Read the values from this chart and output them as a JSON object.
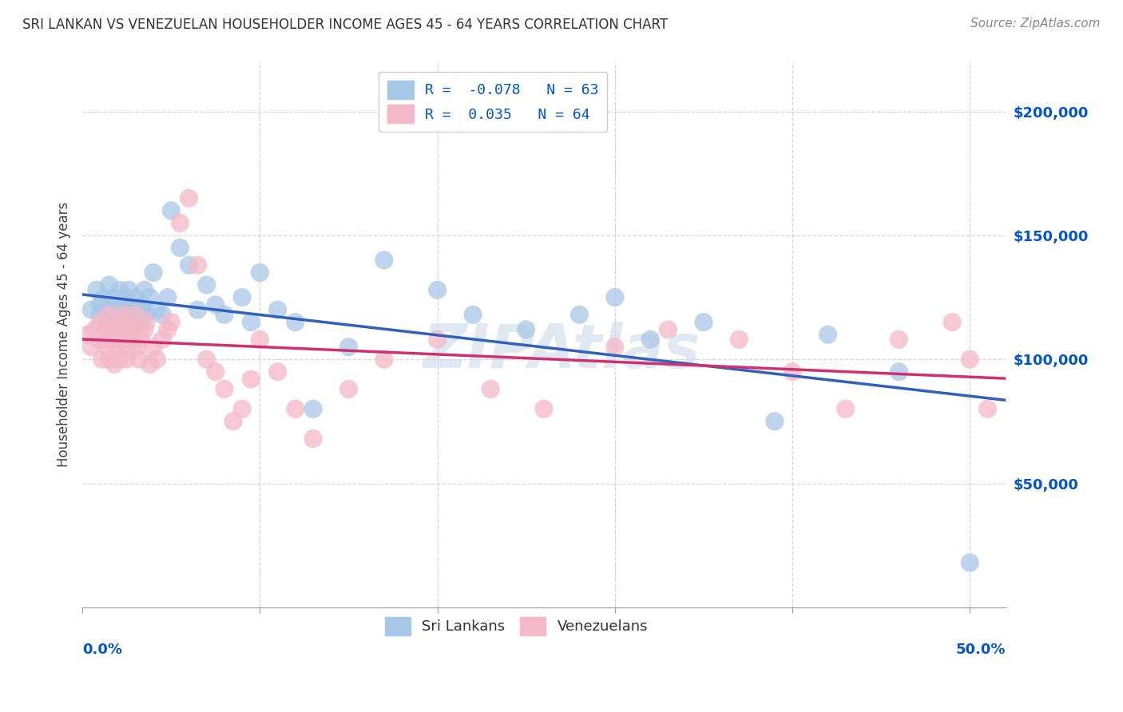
{
  "title": "SRI LANKAN VS VENEZUELAN HOUSEHOLDER INCOME AGES 45 - 64 YEARS CORRELATION CHART",
  "source": "Source: ZipAtlas.com",
  "ylabel": "Householder Income Ages 45 - 64 years",
  "ytick_labels": [
    "$50,000",
    "$100,000",
    "$150,000",
    "$200,000"
  ],
  "ytick_values": [
    50000,
    100000,
    150000,
    200000
  ],
  "ylim": [
    0,
    220000
  ],
  "xlim": [
    0.0,
    0.52
  ],
  "watermark": "ZIPAtlas",
  "sri_lankans_color": "#a8c8e8",
  "venezuelans_color": "#f4b8c8",
  "trend_sl_color": "#3060c0",
  "trend_ve_color": "#d03070",
  "sl_R": -0.078,
  "sl_N": 63,
  "ve_R": 0.035,
  "ve_N": 64,
  "sri_lankans_x": [
    0.005,
    0.008,
    0.01,
    0.01,
    0.012,
    0.014,
    0.015,
    0.015,
    0.016,
    0.017,
    0.018,
    0.019,
    0.02,
    0.02,
    0.021,
    0.022,
    0.022,
    0.023,
    0.024,
    0.025,
    0.025,
    0.026,
    0.027,
    0.028,
    0.029,
    0.03,
    0.031,
    0.032,
    0.033,
    0.034,
    0.035,
    0.036,
    0.038,
    0.04,
    0.042,
    0.045,
    0.048,
    0.05,
    0.055,
    0.06,
    0.065,
    0.07,
    0.075,
    0.08,
    0.09,
    0.095,
    0.1,
    0.11,
    0.12,
    0.13,
    0.15,
    0.17,
    0.2,
    0.22,
    0.25,
    0.28,
    0.3,
    0.32,
    0.35,
    0.39,
    0.42,
    0.46,
    0.5
  ],
  "sri_lankans_y": [
    120000,
    128000,
    122000,
    118000,
    125000,
    115000,
    130000,
    112000,
    120000,
    108000,
    125000,
    118000,
    122000,
    115000,
    128000,
    120000,
    112000,
    118000,
    125000,
    120000,
    115000,
    128000,
    118000,
    122000,
    112000,
    125000,
    118000,
    120000,
    115000,
    122000,
    128000,
    118000,
    125000,
    135000,
    120000,
    118000,
    125000,
    160000,
    145000,
    138000,
    120000,
    130000,
    122000,
    118000,
    125000,
    115000,
    135000,
    120000,
    115000,
    80000,
    105000,
    140000,
    128000,
    118000,
    112000,
    118000,
    125000,
    108000,
    115000,
    75000,
    110000,
    95000,
    18000
  ],
  "venezuelans_x": [
    0.003,
    0.005,
    0.007,
    0.009,
    0.01,
    0.011,
    0.012,
    0.013,
    0.014,
    0.015,
    0.015,
    0.016,
    0.017,
    0.018,
    0.019,
    0.02,
    0.021,
    0.022,
    0.023,
    0.024,
    0.025,
    0.025,
    0.026,
    0.027,
    0.028,
    0.03,
    0.031,
    0.032,
    0.033,
    0.035,
    0.036,
    0.038,
    0.04,
    0.042,
    0.045,
    0.048,
    0.05,
    0.055,
    0.06,
    0.065,
    0.07,
    0.075,
    0.08,
    0.085,
    0.09,
    0.095,
    0.1,
    0.11,
    0.12,
    0.13,
    0.15,
    0.17,
    0.2,
    0.23,
    0.26,
    0.3,
    0.33,
    0.37,
    0.4,
    0.43,
    0.46,
    0.49,
    0.5,
    0.51
  ],
  "venezuelans_y": [
    110000,
    105000,
    112000,
    108000,
    115000,
    100000,
    108000,
    112000,
    105000,
    118000,
    100000,
    108000,
    112000,
    98000,
    105000,
    115000,
    100000,
    108000,
    118000,
    112000,
    105000,
    100000,
    115000,
    108000,
    112000,
    118000,
    105000,
    100000,
    108000,
    112000,
    115000,
    98000,
    105000,
    100000,
    108000,
    112000,
    115000,
    155000,
    165000,
    138000,
    100000,
    95000,
    88000,
    75000,
    80000,
    92000,
    108000,
    95000,
    80000,
    68000,
    88000,
    100000,
    108000,
    88000,
    80000,
    105000,
    112000,
    108000,
    95000,
    80000,
    108000,
    115000,
    100000,
    80000
  ],
  "background_color": "#ffffff",
  "grid_color": "#cccccc"
}
